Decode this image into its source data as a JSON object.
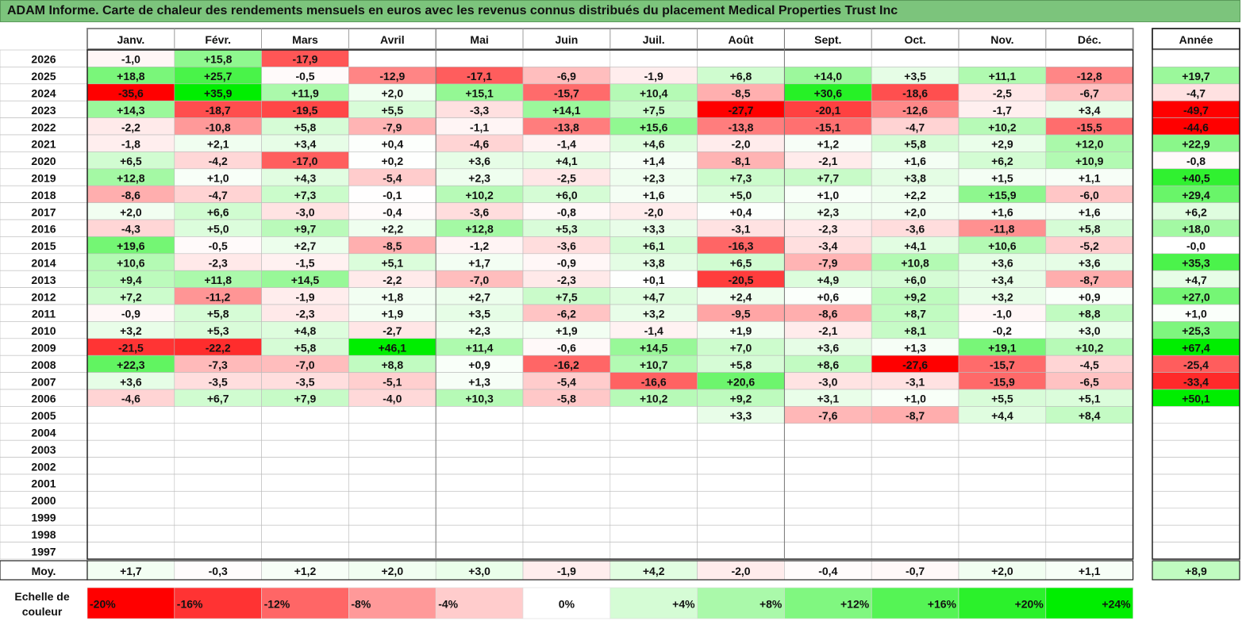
{
  "title": "ADAM Informe. Carte de chaleur des rendements mensuels en euros avec les revenus connus distribués du placement Medical Properties Trust Inc",
  "chart_data": {
    "type": "heatmap",
    "columns": [
      "Janv.",
      "Févr.",
      "Mars",
      "Avril",
      "Mai",
      "Juin",
      "Juil.",
      "Août",
      "Sept.",
      "Oct.",
      "Nov.",
      "Déc."
    ],
    "year_header": "Année",
    "avg_label": "Moy.",
    "scale_label": "Echelle de couleur",
    "rows": [
      {
        "year": "2026",
        "values": [
          "-1,0",
          "+15,8",
          "-17,9",
          "",
          "",
          "",
          "",
          "",
          "",
          "",
          "",
          ""
        ],
        "annual": ""
      },
      {
        "year": "2025",
        "values": [
          "+18,8",
          "+25,7",
          "-0,5",
          "-12,9",
          "-17,1",
          "-6,9",
          "-1,9",
          "+6,8",
          "+14,0",
          "+3,5",
          "+11,1",
          "-12,8"
        ],
        "annual": "+19,7"
      },
      {
        "year": "2024",
        "values": [
          "-35,6",
          "+35,9",
          "+11,9",
          "+2,0",
          "+15,1",
          "-15,7",
          "+10,4",
          "-8,5",
          "+30,6",
          "-18,6",
          "-2,5",
          "-6,7"
        ],
        "annual": "-4,7"
      },
      {
        "year": "2023",
        "values": [
          "+14,3",
          "-18,7",
          "-19,5",
          "+5,5",
          "-3,3",
          "+14,1",
          "+7,5",
          "-27,7",
          "-20,1",
          "-12,6",
          "-1,7",
          "+3,4"
        ],
        "annual": "-49,7"
      },
      {
        "year": "2022",
        "values": [
          "-2,2",
          "-10,8",
          "+5,8",
          "-7,9",
          "-1,1",
          "-13,8",
          "+15,6",
          "-13,8",
          "-15,1",
          "-4,7",
          "+10,2",
          "-15,5"
        ],
        "annual": "-44,6"
      },
      {
        "year": "2021",
        "values": [
          "-1,8",
          "+2,1",
          "+3,4",
          "+0,4",
          "-4,6",
          "-1,4",
          "+4,6",
          "-2,0",
          "+1,2",
          "+5,8",
          "+2,9",
          "+12,0"
        ],
        "annual": "+22,9"
      },
      {
        "year": "2020",
        "values": [
          "+6,5",
          "-4,2",
          "-17,0",
          "+0,2",
          "+3,6",
          "+4,1",
          "+1,4",
          "-8,1",
          "-2,1",
          "+1,6",
          "+6,2",
          "+10,9"
        ],
        "annual": "-0,8"
      },
      {
        "year": "2019",
        "values": [
          "+12,8",
          "+1,0",
          "+4,3",
          "-5,4",
          "+2,3",
          "-2,5",
          "+2,3",
          "+7,3",
          "+7,7",
          "+3,8",
          "+1,5",
          "+1,1"
        ],
        "annual": "+40,5"
      },
      {
        "year": "2018",
        "values": [
          "-8,6",
          "-4,7",
          "+7,3",
          "-0,1",
          "+10,2",
          "+6,0",
          "+1,6",
          "+5,0",
          "+1,0",
          "+2,2",
          "+15,9",
          "-6,0"
        ],
        "annual": "+29,4"
      },
      {
        "year": "2017",
        "values": [
          "+2,0",
          "+6,6",
          "-3,0",
          "-0,4",
          "-3,6",
          "-0,8",
          "-2,0",
          "+0,4",
          "+2,3",
          "+2,0",
          "+1,6",
          "+1,6"
        ],
        "annual": "+6,2"
      },
      {
        "year": "2016",
        "values": [
          "-4,3",
          "+5,0",
          "+9,7",
          "+2,2",
          "+12,8",
          "+5,3",
          "+3,3",
          "-3,1",
          "-2,3",
          "-3,6",
          "-11,8",
          "+5,8"
        ],
        "annual": "+18,0"
      },
      {
        "year": "2015",
        "values": [
          "+19,6",
          "-0,5",
          "+2,7",
          "-8,5",
          "-1,2",
          "-3,6",
          "+6,1",
          "-16,3",
          "-3,4",
          "+4,1",
          "+10,6",
          "-5,2"
        ],
        "annual": "-0,0"
      },
      {
        "year": "2014",
        "values": [
          "+10,6",
          "-2,3",
          "-1,5",
          "+5,1",
          "+1,7",
          "-0,9",
          "+3,8",
          "+6,5",
          "-7,9",
          "+10,8",
          "+3,6",
          "+3,6"
        ],
        "annual": "+35,3"
      },
      {
        "year": "2013",
        "values": [
          "+9,4",
          "+11,8",
          "+14,5",
          "-2,2",
          "-7,0",
          "-2,3",
          "+0,1",
          "-20,5",
          "+4,9",
          "+6,0",
          "+3,4",
          "-8,7"
        ],
        "annual": "+4,7"
      },
      {
        "year": "2012",
        "values": [
          "+7,2",
          "-11,2",
          "-1,9",
          "+1,8",
          "+2,7",
          "+7,5",
          "+4,7",
          "+2,4",
          "+0,6",
          "+9,2",
          "+3,2",
          "+0,9"
        ],
        "annual": "+27,0"
      },
      {
        "year": "2011",
        "values": [
          "-0,9",
          "+5,8",
          "-2,3",
          "+1,9",
          "+3,5",
          "-6,2",
          "+3,2",
          "-9,5",
          "-8,6",
          "+8,7",
          "-1,0",
          "+8,8"
        ],
        "annual": "+1,0"
      },
      {
        "year": "2010",
        "values": [
          "+3,2",
          "+5,3",
          "+4,8",
          "-2,7",
          "+2,3",
          "+1,9",
          "-1,4",
          "+1,9",
          "-2,1",
          "+8,1",
          "-0,2",
          "+3,0"
        ],
        "annual": "+25,3"
      },
      {
        "year": "2009",
        "values": [
          "-21,5",
          "-22,2",
          "+5,8",
          "+46,1",
          "+11,4",
          "-0,6",
          "+14,5",
          "+7,0",
          "+3,6",
          "+1,3",
          "+19,1",
          "+10,2"
        ],
        "annual": "+67,4"
      },
      {
        "year": "2008",
        "values": [
          "+22,3",
          "-7,3",
          "-7,0",
          "+8,8",
          "+0,9",
          "-16,2",
          "+10,7",
          "+5,8",
          "+8,6",
          "-27,6",
          "-15,7",
          "-4,5"
        ],
        "annual": "-25,4"
      },
      {
        "year": "2007",
        "values": [
          "+3,6",
          "-3,5",
          "-3,5",
          "-5,1",
          "+1,3",
          "-5,4",
          "-16,6",
          "+20,6",
          "-3,0",
          "-3,1",
          "-15,9",
          "-6,5"
        ],
        "annual": "-33,4"
      },
      {
        "year": "2006",
        "values": [
          "-4,6",
          "+6,7",
          "+7,9",
          "-4,0",
          "+10,3",
          "-5,8",
          "+10,2",
          "+9,2",
          "+3,1",
          "+1,0",
          "+5,5",
          "+5,1"
        ],
        "annual": "+50,1"
      },
      {
        "year": "2005",
        "values": [
          "",
          "",
          "",
          "",
          "",
          "",
          "",
          "+3,3",
          "-7,6",
          "-8,7",
          "+4,4",
          "+8,4"
        ],
        "annual": ""
      },
      {
        "year": "2004",
        "values": [
          "",
          "",
          "",
          "",
          "",
          "",
          "",
          "",
          "",
          "",
          "",
          ""
        ],
        "annual": ""
      },
      {
        "year": "2003",
        "values": [
          "",
          "",
          "",
          "",
          "",
          "",
          "",
          "",
          "",
          "",
          "",
          ""
        ],
        "annual": ""
      },
      {
        "year": "2002",
        "values": [
          "",
          "",
          "",
          "",
          "",
          "",
          "",
          "",
          "",
          "",
          "",
          ""
        ],
        "annual": ""
      },
      {
        "year": "2001",
        "values": [
          "",
          "",
          "",
          "",
          "",
          "",
          "",
          "",
          "",
          "",
          "",
          ""
        ],
        "annual": ""
      },
      {
        "year": "2000",
        "values": [
          "",
          "",
          "",
          "",
          "",
          "",
          "",
          "",
          "",
          "",
          "",
          ""
        ],
        "annual": ""
      },
      {
        "year": "1999",
        "values": [
          "",
          "",
          "",
          "",
          "",
          "",
          "",
          "",
          "",
          "",
          "",
          ""
        ],
        "annual": ""
      },
      {
        "year": "1998",
        "values": [
          "",
          "",
          "",
          "",
          "",
          "",
          "",
          "",
          "",
          "",
          "",
          ""
        ],
        "annual": ""
      },
      {
        "year": "1997",
        "values": [
          "",
          "",
          "",
          "",
          "",
          "",
          "",
          "",
          "",
          "",
          "",
          ""
        ],
        "annual": ""
      }
    ],
    "averages": [
      "+1,7",
      "-0,3",
      "+1,2",
      "+2,0",
      "+3,0",
      "-1,9",
      "+4,2",
      "-2,0",
      "-0,4",
      "-0,7",
      "+2,0",
      "+1,1"
    ],
    "average_annual": "+8,9",
    "scale": [
      {
        "label": "-20%",
        "value": -20
      },
      {
        "label": "-16%",
        "value": -16
      },
      {
        "label": "-12%",
        "value": -12
      },
      {
        "label": "-8%",
        "value": -8
      },
      {
        "label": "-4%",
        "value": -4
      },
      {
        "label": "0%",
        "value": 0
      },
      {
        "label": "+4%",
        "value": 4
      },
      {
        "label": "+8%",
        "value": 8
      },
      {
        "label": "+12%",
        "value": 12
      },
      {
        "label": "+16%",
        "value": 16
      },
      {
        "label": "+20%",
        "value": 20
      },
      {
        "label": "+24%",
        "value": 24
      }
    ],
    "colors": {
      "negative": "#ff0000",
      "neutral": "#ffffff",
      "positive": "#00ee00",
      "title_bg": "#7cc47c"
    }
  }
}
